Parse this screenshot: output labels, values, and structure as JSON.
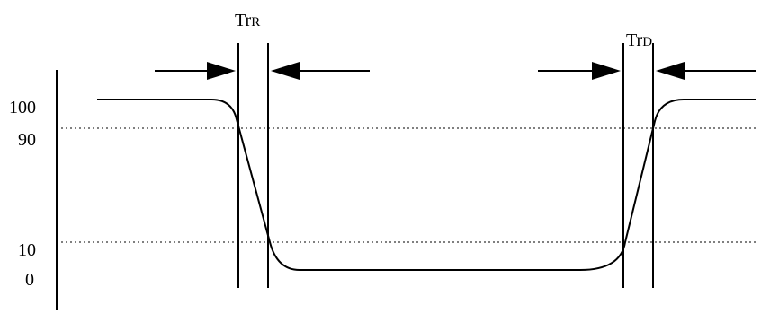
{
  "y_axis": {
    "ticks": [
      "100",
      "90",
      "10",
      "0"
    ]
  },
  "annotations": {
    "rise": {
      "main": "Tr",
      "sub": "R"
    },
    "decay": {
      "main": "Tr",
      "sub": "D"
    }
  },
  "style": {
    "line_color": "#000000",
    "dotted_line_color": "#000000"
  }
}
